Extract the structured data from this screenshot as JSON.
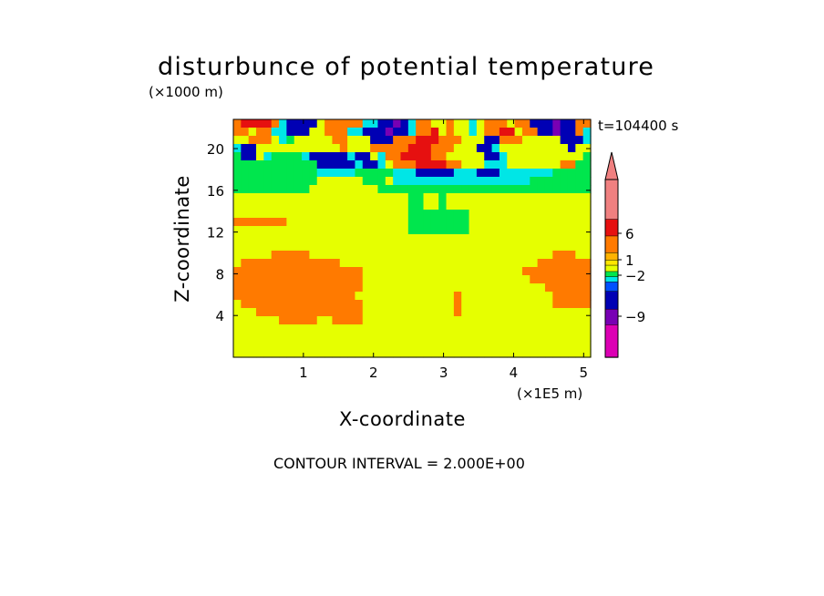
{
  "title": "disturbunce of potential temperature",
  "time_label": "t=104400 s",
  "contour_interval": "CONTOUR INTERVAL = 2.000E+00",
  "chart_data": {
    "type": "heatmap",
    "title": "disturbunce of potential temperature",
    "xlabel": "X-coordinate",
    "ylabel": "Z-coordinate",
    "x_unit": "(×1E5 m)",
    "y_unit": "(×1000 m)",
    "xlim": [
      0,
      5.1
    ],
    "ylim": [
      0,
      22.8
    ],
    "x_ticks": [
      1,
      2,
      3,
      4,
      5
    ],
    "y_ticks": [
      4,
      8,
      12,
      16,
      20
    ],
    "colorbar": {
      "labels": [
        {
          "value": 6,
          "text": "6"
        },
        {
          "value": 1,
          "text": "1"
        },
        {
          "value": -2,
          "text": "−2"
        },
        {
          "value": -9,
          "text": "−9"
        }
      ],
      "bands_top_to_bottom": [
        "#f08080",
        "#e61010",
        "#ff7a00",
        "#ffb300",
        "#ffe600",
        "#e6ff00",
        "#00e64d",
        "#00e6e6",
        "#0050ff",
        "#0000b4",
        "#7800b4",
        "#dc00b4"
      ]
    },
    "field_rows_top_to_bottom": [
      "ORRRROLBBBBYOOOOOLLBBMBLOOYYOYYLYOOOYOOBBBMBBOO",
      "OOYOOLLBBBYYOOOLLBBBMBBLOORYOYYLYOORRYOOBBMBBOL",
      "YYOOOYLGYYYYYOOYYYBBBOOORRROOOYYYBBOOOYYYYYBBBL",
      "LBBYYYYYYYYYYYOYYYOOOOORRROOOYYYBBLYYYYYYYYYBYY",
      "GBBYLGGGGLBBBBBLBBYLOORRRROOYYYYYBBLYYYYYYYYYYG",
      "GGGGGGGGGGGBBBBBLBBLYOOORRRROOYYYLLLYYYYYYYOOGG",
      "GGGGGGGGGGGLLLLLGGGGGLLLBBBBBLLLBBBLLLLLLLGGGGG",
      "GGGGGGGGGGGYYYYYYGGGYLLLLLLLLLLLLLLLLLLGGGGGGGG",
      "GGGGGGGGGGYYYYYYYYYGGGGGGGGGGGGGGGGGGGGGGGGGGGG",
      "YYYYYYYYYYYYYYYYYYYYYYYGGYYGYYYYYYYYYYYYYYYYYYY",
      "YYYYYYYYYYYYYYYYYYYYYYYGGYYGYYYYYYYYYYYYYYYYYYY",
      "YYYYYYYYYYYYYYYYYYYYYYYGGGGGGGGYYYYYYYYYYYYYYYY",
      "OOOOOOOYYYYYYYYYYYYYYYYGGGGGGGGYYYYYYYYYYYYYYYY",
      "YYYYYYYYYYYYYYYYYYYYYYYGGGGGGGGYYYYYYYYYYYYYYYY",
      "YYYYYYYYYYYYYYYYYYYYYYYYYYYYYYYYYYYYYYYYYYYYYYY",
      "YYYYYYYYYYYYYYYYYYYYYYYYYYYYYYYYYYYYYYYYYYYYYYY",
      "YYYYYOOOOOYYYYYYYYYYYYYYYYYYYYYYYYYYYYYYYYOOOYY",
      "YOOOOOOOOOOOOOYYYYYYYYYYYYYYYYYYYYYYYYYYOOOOOOO",
      "OOOOOOOOOOOOOOOOOYYYYYYYYYYYYYYYYYYYYYOOOOOOOOO",
      "OOOOOOOOOOOOOOOOOYYYYYYYYYYYYYYYYYYYYYYOOOOOOOO",
      "OOOOOOOOOOOOOOOOOYYYYYYYYYYYYYYYYYYYYYYYYOOOOOO",
      "OOOOOOOOOOOOOOOOYYYYYYYYYYYYYOYYYYYYYYYYYYOOOOO",
      "YOOOOOOOOOOOOOOOOYYYYYYYYYYYYOYYYYYYYYYYYYOOOOO",
      "YYYOOOOOOOOOOOOOOYYYYYYYYYYYYOYYYYYYYYYYYYYYYYY",
      "YYYYYYOOOOOYYOOOOYYYYYYYYYYYYYYYYYYYYYYYYYYYYYY",
      "YYYYYYYYYYYYYYYYYYYYYYYYYYYYYYYYYYYYYYYYYYYYYYY",
      "YYYYYYYYYYYYYYYYYYYYYYYYYYYYYYYYYYYYYYYYYYYYYYY",
      "YYYYYYYYYYYYYYYYYYYYYYYYYYYYYYYYYYYYYYYYYYYYYYY",
      "YYYYYYYYYYYYYYYYYYYYYYYYYYYYYYYYYYYYYYYYYYYYYYY"
    ],
    "field_key": {
      "R": "#e61010",
      "O": "#ff7a00",
      "Y": "#e6ff00",
      "G": "#00e64d",
      "L": "#00e6e6",
      "B": "#0000b4",
      "M": "#7800b4"
    }
  }
}
